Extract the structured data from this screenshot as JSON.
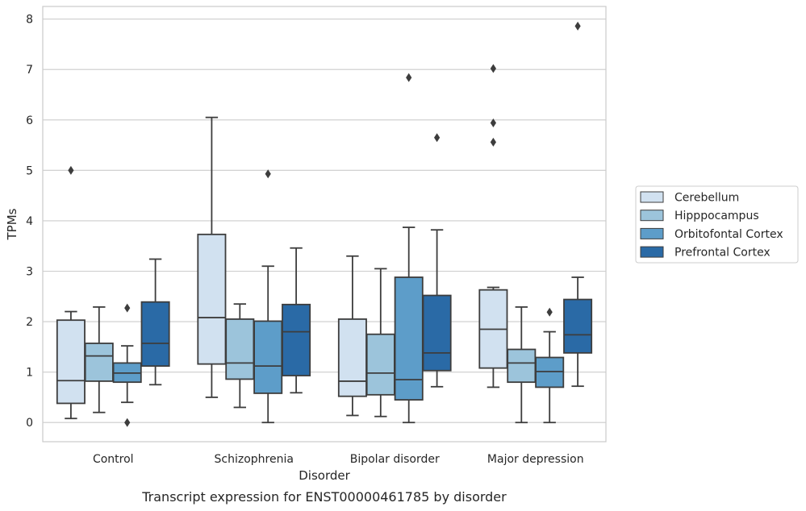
{
  "chart_data": {
    "type": "box",
    "title": "Transcript expression for ENST00000461785 by disorder",
    "xlabel": "Disorder",
    "ylabel": "TPMs",
    "categories": [
      "Control",
      "Schizophrenia",
      "Bipolar disorder",
      "Major depression"
    ],
    "ylim": [
      -0.38,
      8.25
    ],
    "yticks": [
      0,
      1,
      2,
      3,
      4,
      5,
      6,
      7,
      8
    ],
    "grid": "horizontal",
    "legend_position": "center-right",
    "series": [
      {
        "name": "Cerebellum",
        "color": "#d1e1f0",
        "boxes": [
          {
            "whislo": 0.08,
            "q1": 0.38,
            "med": 0.83,
            "q3": 2.03,
            "whishi": 2.2,
            "fliers": [
              5.0
            ]
          },
          {
            "whislo": 0.5,
            "q1": 1.16,
            "med": 2.08,
            "q3": 3.73,
            "whishi": 6.05,
            "fliers": []
          },
          {
            "whislo": 0.14,
            "q1": 0.52,
            "med": 0.82,
            "q3": 2.05,
            "whishi": 3.3,
            "fliers": []
          },
          {
            "whislo": 0.7,
            "q1": 1.08,
            "med": 1.85,
            "q3": 2.63,
            "whishi": 2.68,
            "fliers": [
              5.56,
              5.94,
              7.02
            ]
          }
        ]
      },
      {
        "name": "Hipppocampus",
        "color": "#9cc4db",
        "boxes": [
          {
            "whislo": 0.2,
            "q1": 0.82,
            "med": 1.32,
            "q3": 1.57,
            "whishi": 2.29,
            "fliers": []
          },
          {
            "whislo": 0.3,
            "q1": 0.86,
            "med": 1.18,
            "q3": 2.05,
            "whishi": 2.35,
            "fliers": []
          },
          {
            "whislo": 0.12,
            "q1": 0.55,
            "med": 0.98,
            "q3": 1.75,
            "whishi": 3.05,
            "fliers": []
          },
          {
            "whislo": 0.0,
            "q1": 0.8,
            "med": 1.18,
            "q3": 1.45,
            "whishi": 2.29,
            "fliers": []
          }
        ]
      },
      {
        "name": "Orbitofontal Cortex",
        "color": "#5d9dc9",
        "boxes": [
          {
            "whislo": 0.4,
            "q1": 0.8,
            "med": 0.98,
            "q3": 1.18,
            "whishi": 1.52,
            "fliers": [
              0.0,
              2.27
            ]
          },
          {
            "whislo": 0.0,
            "q1": 0.58,
            "med": 1.12,
            "q3": 2.01,
            "whishi": 3.1,
            "fliers": [
              4.93
            ]
          },
          {
            "whislo": 0.0,
            "q1": 0.45,
            "med": 0.85,
            "q3": 2.88,
            "whishi": 3.87,
            "fliers": [
              6.84
            ]
          },
          {
            "whislo": 0.0,
            "q1": 0.7,
            "med": 1.01,
            "q3": 1.29,
            "whishi": 1.8,
            "fliers": [
              2.19
            ]
          }
        ]
      },
      {
        "name": "Prefrontal Cortex",
        "color": "#2a6aa6",
        "boxes": [
          {
            "whislo": 0.75,
            "q1": 1.12,
            "med": 1.57,
            "q3": 2.39,
            "whishi": 3.24,
            "fliers": []
          },
          {
            "whislo": 0.59,
            "q1": 0.93,
            "med": 1.8,
            "q3": 2.34,
            "whishi": 3.46,
            "fliers": []
          },
          {
            "whislo": 0.71,
            "q1": 1.03,
            "med": 1.38,
            "q3": 2.52,
            "whishi": 3.82,
            "fliers": [
              5.65
            ]
          },
          {
            "whislo": 0.72,
            "q1": 1.38,
            "med": 1.74,
            "q3": 2.44,
            "whishi": 2.88,
            "fliers": [
              7.86
            ]
          }
        ]
      }
    ]
  }
}
